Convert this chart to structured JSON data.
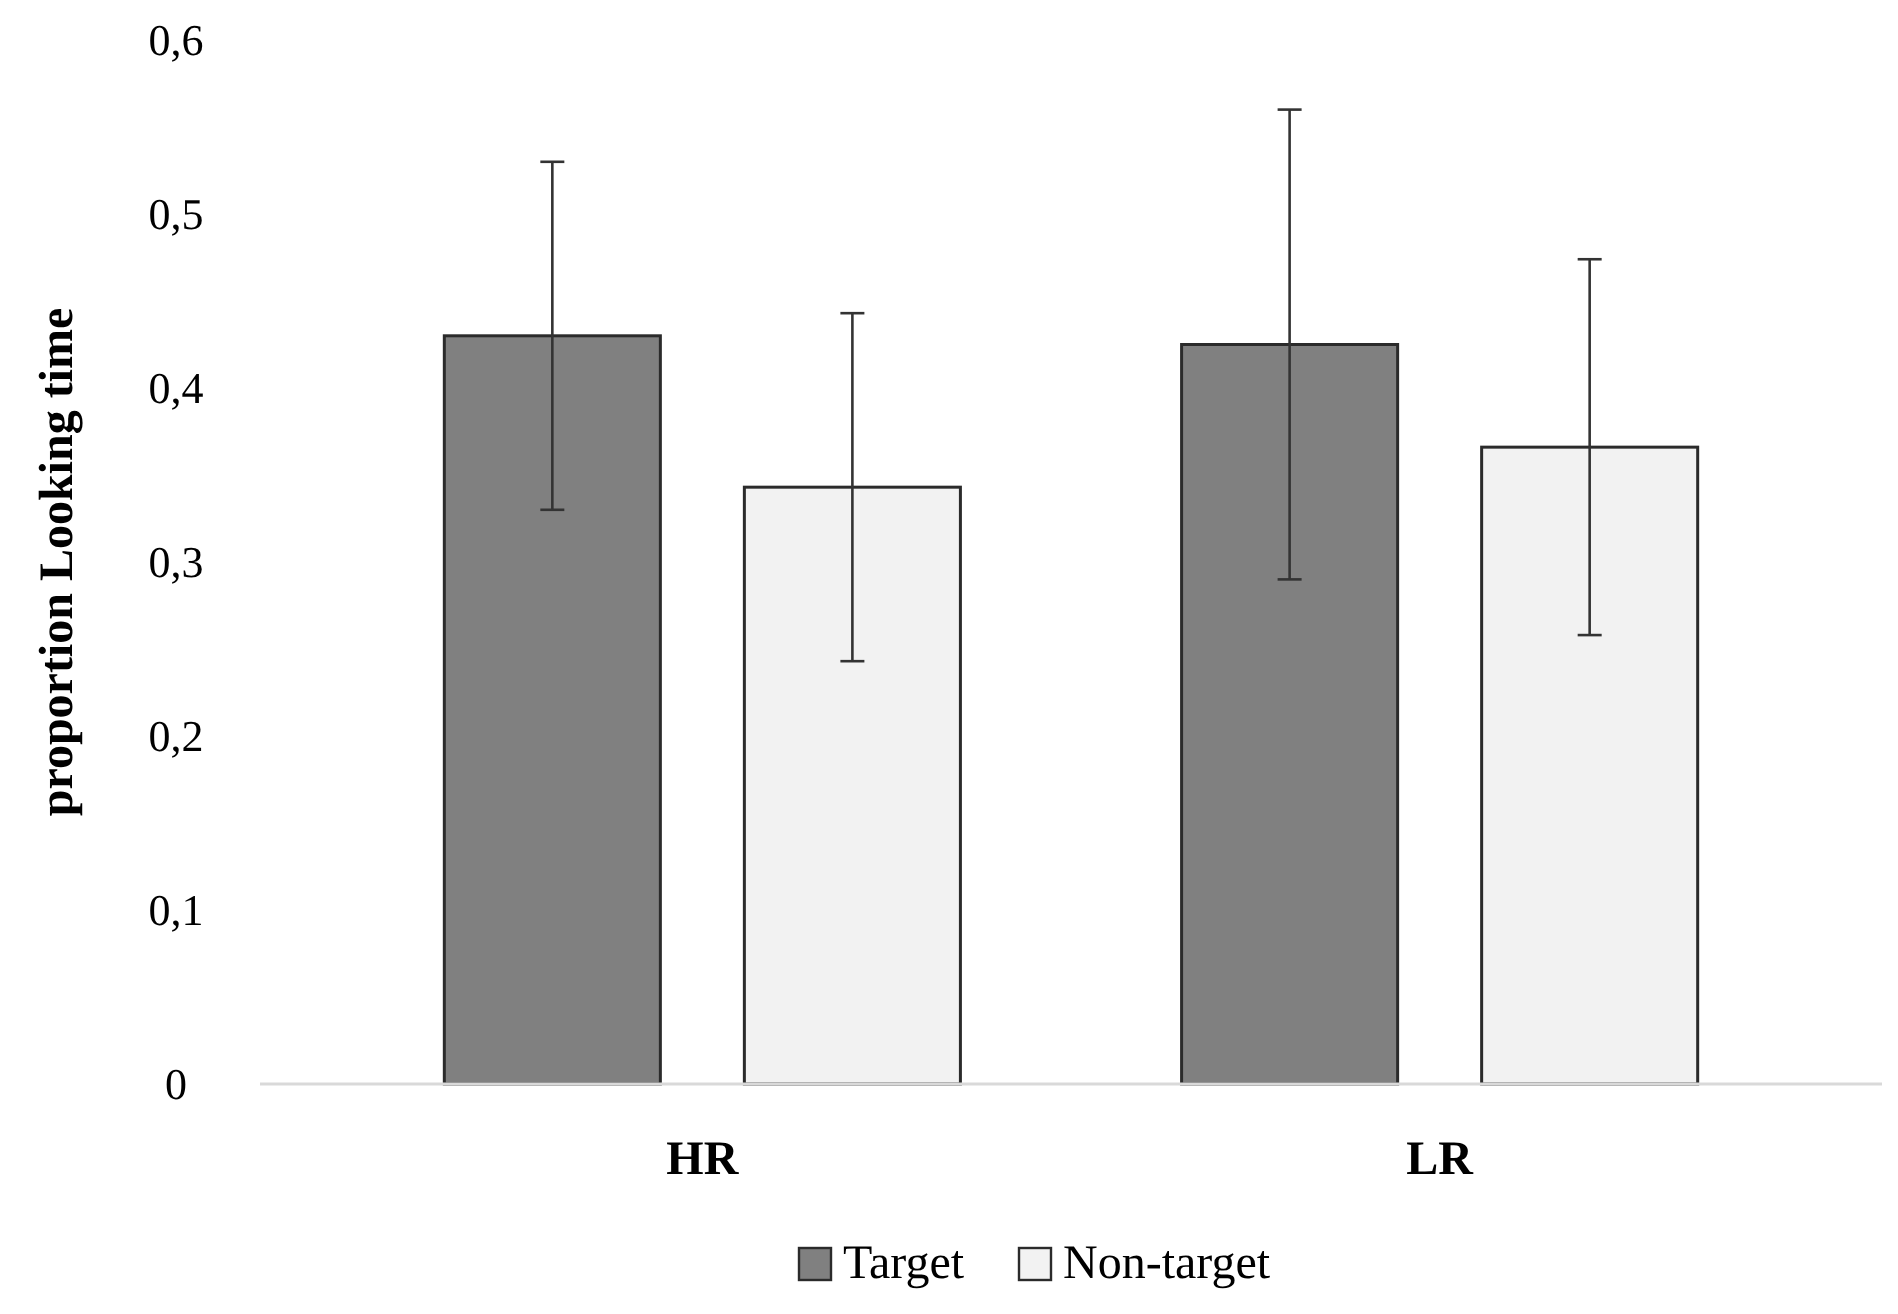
{
  "chart_data": {
    "type": "bar",
    "ylabel": "proportion Looking time",
    "categories": [
      "HR",
      "LR"
    ],
    "series": [
      {
        "name": "Target",
        "color": "#808080",
        "values": [
          0.43,
          0.425
        ],
        "errors": [
          0.1,
          0.135
        ]
      },
      {
        "name": "Non-target",
        "color": "#f2f2f2",
        "values": [
          0.343,
          0.366
        ],
        "errors": [
          0.1,
          0.108
        ]
      }
    ],
    "ylim": [
      0,
      0.6
    ],
    "yticks": [
      0,
      {
        "value": 0.1,
        "label": "0,1"
      },
      {
        "value": 0.2,
        "label": "0,2"
      },
      {
        "value": 0.3,
        "label": "0,3"
      },
      {
        "value": 0.4,
        "label": "0,4"
      },
      {
        "value": 0.5,
        "label": "0,5"
      },
      {
        "value": 0.6,
        "label": "0,6"
      }
    ],
    "grid": false,
    "legend": "bottom"
  }
}
